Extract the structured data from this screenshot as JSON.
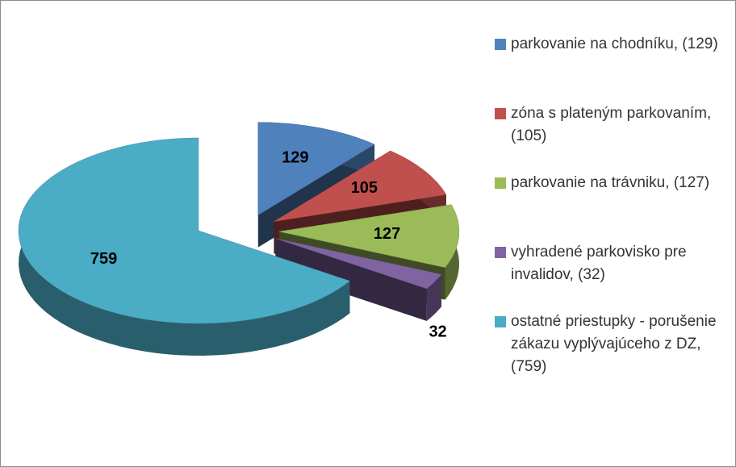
{
  "chart_data": {
    "type": "pie",
    "series": [
      {
        "name": "parkovanie na chodníku, (129)",
        "color": "#4f81bd",
        "values": [
          129
        ]
      },
      {
        "name": "zóna s plateným parkovaním, (105)",
        "color": "#c0504d",
        "values": [
          105
        ]
      },
      {
        "name": "parkovanie na trávniku, (127)",
        "color": "#9bbb59",
        "values": [
          127
        ]
      },
      {
        "name": "vyhradené parkovisko pre invalidov, (32)",
        "color": "#8064a2",
        "values": [
          32
        ]
      },
      {
        "name": "ostatné priestupky  - porušenie zákazu vyplývajúceho z DZ, (759)",
        "color": "#4bacc6",
        "values": [
          759
        ]
      }
    ],
    "legend": "right",
    "three_d": true,
    "exploded": true
  }
}
